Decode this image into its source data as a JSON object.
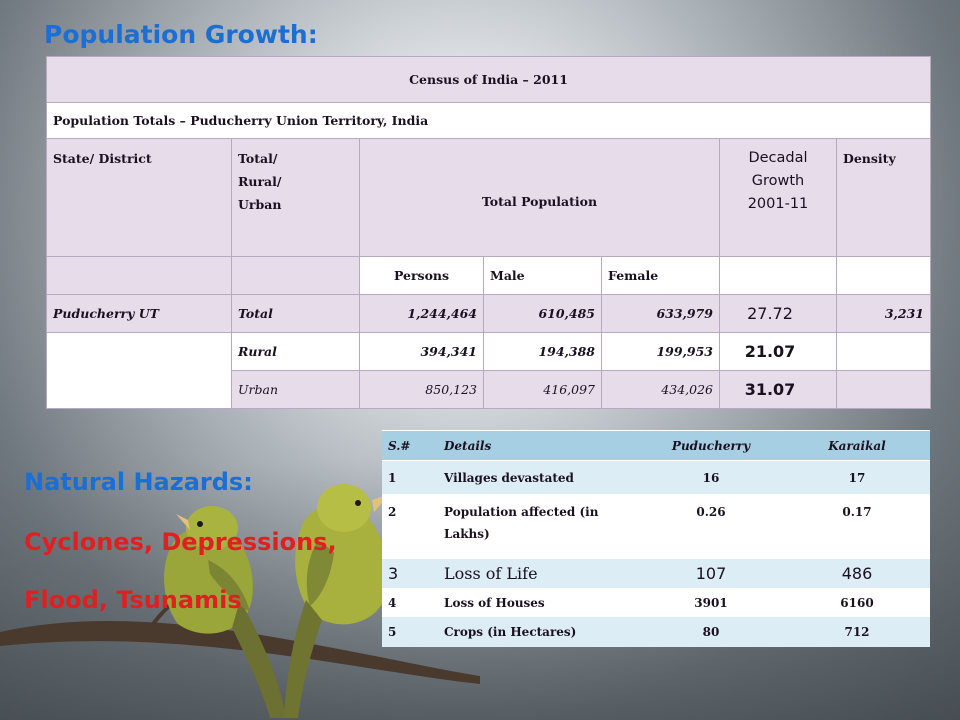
{
  "headings": {
    "population": "Population Growth:",
    "hazards": "Natural Hazards:",
    "hazard_types_line1": "Cyclones, Depressions,",
    "hazard_types_line2": "Flood, Tsunamis"
  },
  "colors": {
    "heading_blue": "#1b6fd4",
    "hazard_red": "#e02020",
    "census_band": "#e6dcea",
    "hazard_header": "#a6cfe3",
    "hazard_stripe": "#dcedf5"
  },
  "census_table": {
    "title": "Census of India – 2011",
    "subtitle": "Population Totals –  Puducherry Union Territory, India",
    "headers": {
      "state": "State/ District",
      "total_rural_urban": [
        "Total/",
        "Rural/",
        "Urban"
      ],
      "total_population": "Total Population",
      "decadal_growth": [
        "Decadal",
        "Growth",
        "2001-11"
      ],
      "density": "Density"
    },
    "subheaders": {
      "persons": "Persons",
      "male": "Male",
      "female": "Female"
    },
    "rows": [
      {
        "state": "Puducherry UT",
        "type": "Total",
        "persons": "1,244,464",
        "male": "610,485",
        "female": "633,979",
        "growth": "27.72",
        "density": "3,231"
      },
      {
        "state": "",
        "type": "Rural",
        "persons": "394,341",
        "male": "194,388",
        "female": "199,953",
        "growth": "21.07",
        "density": ""
      },
      {
        "state": "",
        "type": "Urban",
        "persons": "850,123",
        "male": "416,097",
        "female": "434,026",
        "growth": "31.07",
        "density": ""
      }
    ]
  },
  "hazard_table": {
    "headers": {
      "sno": "S.#",
      "details": "Details",
      "puducherry": "Puducherry",
      "karaikal": "Karaikal"
    },
    "rows": [
      {
        "sno": "1",
        "details": "Villages devastated",
        "puducherry": "16",
        "karaikal": "17"
      },
      {
        "sno": "2",
        "details": "Population affected (in Lakhs)",
        "puducherry": "0.26",
        "karaikal": "0.17"
      },
      {
        "sno": "3",
        "details": "Loss of Life",
        "puducherry": "107",
        "karaikal": "486"
      },
      {
        "sno": "4",
        "details": "Loss of Houses",
        "puducherry": "3901",
        "karaikal": "6160"
      },
      {
        "sno": "5",
        "details": "Crops (in Hectares)",
        "puducherry": "80",
        "karaikal": "712"
      }
    ]
  }
}
